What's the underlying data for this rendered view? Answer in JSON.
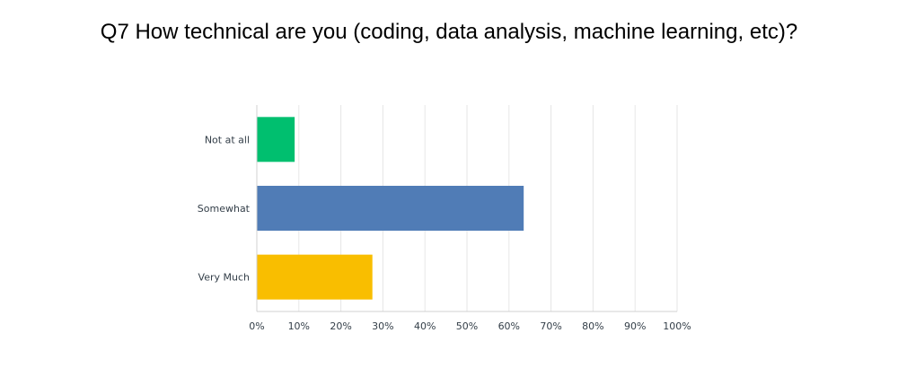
{
  "chart_data": {
    "type": "bar",
    "orientation": "horizontal",
    "title": "Q7 How technical are you (coding, data analysis, machine learning, etc)?",
    "categories": [
      "Not at all",
      "Somewhat",
      "Very Much"
    ],
    "values": [
      9,
      63.5,
      27.5
    ],
    "value_unit": "%",
    "xlim": [
      0,
      100
    ],
    "x_ticks": [
      "0%",
      "10%",
      "20%",
      "30%",
      "40%",
      "50%",
      "60%",
      "70%",
      "80%",
      "90%",
      "100%"
    ],
    "grid": true,
    "legend": "none",
    "colors": [
      "#00bf6f",
      "#507cb6",
      "#f9be00"
    ]
  }
}
